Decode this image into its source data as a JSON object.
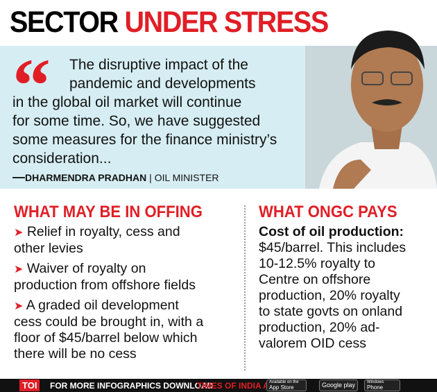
{
  "header": {
    "title_black": "SECTOR",
    "title_red": "UNDER STRESS"
  },
  "quote": {
    "mark": "“",
    "lines": [
      "The disruptive impact of the",
      "pandemic and developments",
      "in the global oil market will continue",
      "for some time. So, we have suggested",
      "some measures for the finance ministry’s",
      "consideration..."
    ],
    "dash": "—",
    "speaker": "DHARMENDRA PRADHAN",
    "separator": "|",
    "role": "OIL MINISTER"
  },
  "left": {
    "heading": "WHAT MAY BE IN OFFING",
    "bullet_symbol": "➤",
    "bullets": [
      {
        "lines": [
          "Relief in royalty, cess and",
          "other levies"
        ]
      },
      {
        "lines": [
          "Waiver of royalty on",
          "production from offshore fields"
        ]
      },
      {
        "lines": [
          "A graded oil development",
          "cess could be brought in, with a",
          "floor of $45/barrel below which",
          "there will be no cess"
        ]
      }
    ]
  },
  "right": {
    "heading": "WHAT ONGC PAYS",
    "subheading": "Cost of oil production:",
    "lines": [
      "$45/barrel. This includes",
      "10-12.5% royalty to",
      "Centre on offshore",
      "production, 20% royalty",
      "to state govts on onland",
      "production, 20% ad-",
      "valorem OID cess"
    ]
  },
  "footer": {
    "logo": "TOI",
    "text": "FOR MORE INFOGRAPHICS DOWNLOAD",
    "app": "TIMES OF INDIA APP",
    "badges": [
      {
        "small": "Available on the",
        "big": "App Store"
      },
      {
        "big": "Google play"
      },
      {
        "small": "Windows",
        "big": "Phone"
      }
    ]
  }
}
